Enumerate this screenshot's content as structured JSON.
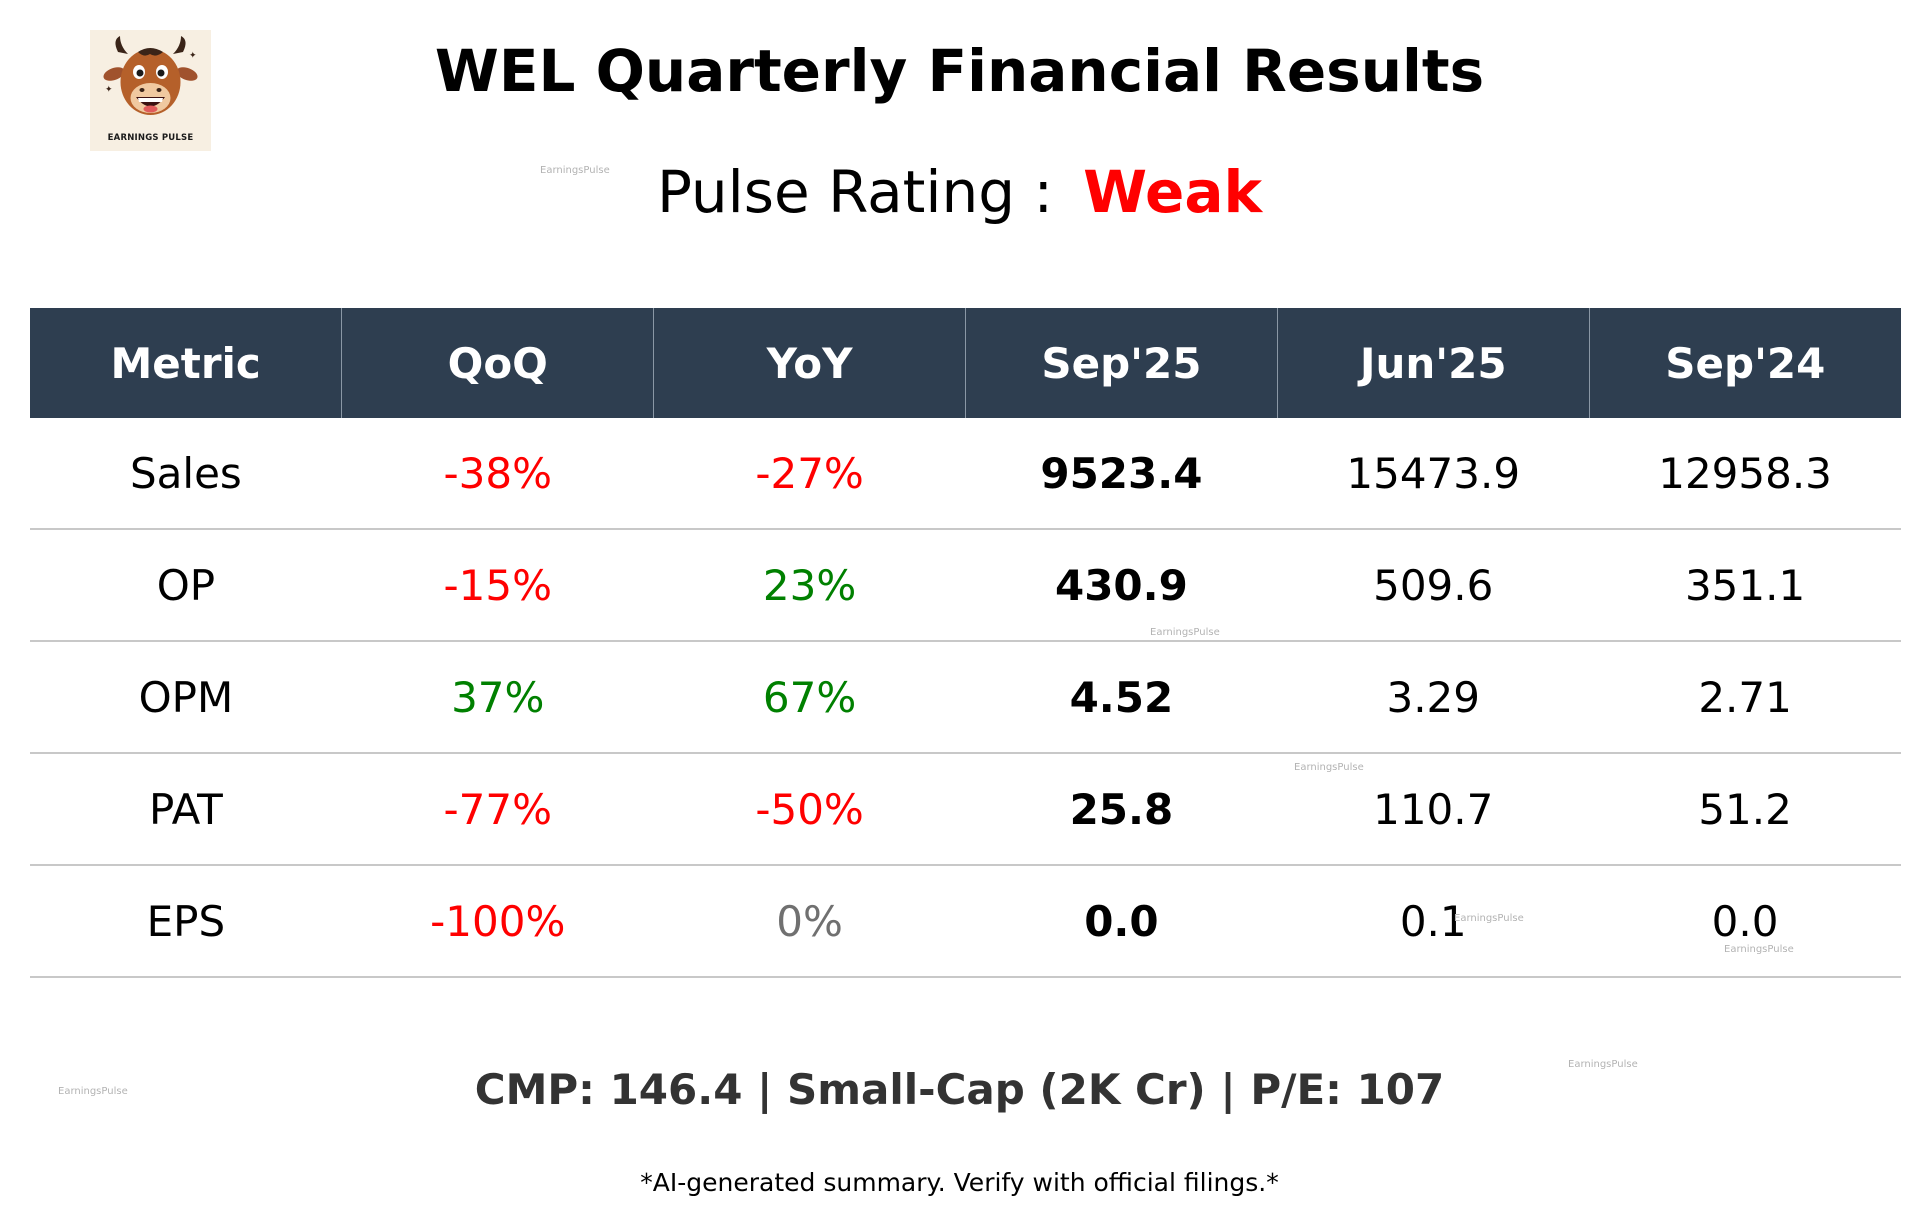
{
  "logo": {
    "text": "EARNINGS PULSE",
    "icon": "bull-mascot-icon"
  },
  "title": "WEL Quarterly Financial Results",
  "rating": {
    "label": "Pulse Rating :",
    "value": "Weak",
    "value_color": "#ff0000"
  },
  "table": {
    "headers": [
      "Metric",
      "QoQ",
      "YoY",
      "Sep'25",
      "Jun'25",
      "Sep'24"
    ],
    "header_bg": "#2e3e50",
    "rows": [
      {
        "metric": "Sales",
        "qoq": "-38%",
        "qoq_tone": "neg",
        "yoy": "-27%",
        "yoy_tone": "neg",
        "sep25": "9523.4",
        "jun25": "15473.9",
        "sep24": "12958.3"
      },
      {
        "metric": "OP",
        "qoq": "-15%",
        "qoq_tone": "neg",
        "yoy": "23%",
        "yoy_tone": "pos",
        "sep25": "430.9",
        "jun25": "509.6",
        "sep24": "351.1"
      },
      {
        "metric": "OPM",
        "qoq": "37%",
        "qoq_tone": "pos",
        "yoy": "67%",
        "yoy_tone": "pos",
        "sep25": "4.52",
        "jun25": "3.29",
        "sep24": "2.71"
      },
      {
        "metric": "PAT",
        "qoq": "-77%",
        "qoq_tone": "neg",
        "yoy": "-50%",
        "yoy_tone": "neg",
        "sep25": "25.8",
        "jun25": "110.7",
        "sep24": "51.2"
      },
      {
        "metric": "EPS",
        "qoq": "-100%",
        "qoq_tone": "neg",
        "yoy": "0%",
        "yoy_tone": "neu",
        "sep25": "0.0",
        "jun25": "0.1",
        "sep24": "0.0"
      }
    ],
    "colors": {
      "neg": "#ff0000",
      "pos": "#008000",
      "neu": "#707070"
    }
  },
  "footer": {
    "stats": "CMP: 146.4 | Small-Cap (2K Cr) | P/E: 107",
    "disclaimer": "*AI-generated summary. Verify with official filings.*"
  },
  "watermark": "EarningsPulse"
}
